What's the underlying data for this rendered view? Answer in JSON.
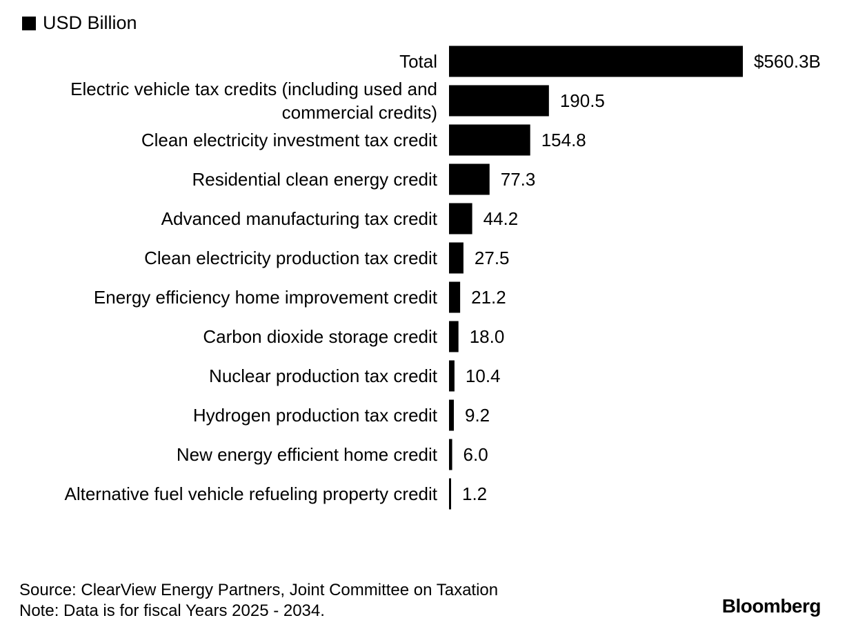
{
  "chart_data": {
    "type": "bar",
    "orientation": "horizontal",
    "legend": [
      "USD Billion"
    ],
    "categories": [
      "Total",
      "Electric vehicle tax credits (including used and commercial credits)",
      "Clean electricity investment tax credit",
      "Residential clean energy credit",
      "Advanced manufacturing tax credit",
      "Clean electricity production tax credit",
      "Energy efficiency home improvement credit",
      "Carbon dioxide storage credit",
      "Nuclear production tax credit",
      "Hydrogen production tax credit",
      "New energy efficient home credit",
      "Alternative fuel vehicle refueling property credit"
    ],
    "category_lines": [
      [
        "Total"
      ],
      [
        "Electric vehicle tax credits (including used and",
        "commercial credits)"
      ],
      [
        "Clean electricity investment tax credit"
      ],
      [
        "Residential clean energy credit"
      ],
      [
        "Advanced manufacturing tax credit"
      ],
      [
        "Clean electricity production tax credit"
      ],
      [
        "Energy efficiency home improvement credit"
      ],
      [
        "Carbon dioxide storage credit"
      ],
      [
        "Nuclear production tax credit"
      ],
      [
        "Hydrogen production tax credit"
      ],
      [
        "New energy efficient home credit"
      ],
      [
        "Alternative fuel vehicle refueling property credit"
      ]
    ],
    "values": [
      560.3,
      190.5,
      154.8,
      77.3,
      44.2,
      27.5,
      21.2,
      18.0,
      10.4,
      9.2,
      6.0,
      1.2
    ],
    "value_labels": [
      "$560.3B",
      "190.5",
      "154.8",
      "77.3",
      "44.2",
      "27.5",
      "21.2",
      "18.0",
      "10.4",
      "9.2",
      "6.0",
      "1.2"
    ],
    "bar_color": "#000000"
  },
  "footer": {
    "source": "Source: ClearView Energy Partners, Joint Committee on Taxation",
    "note": "Note: Data is for fiscal Years 2025 - 2034."
  },
  "brand": "Bloomberg"
}
